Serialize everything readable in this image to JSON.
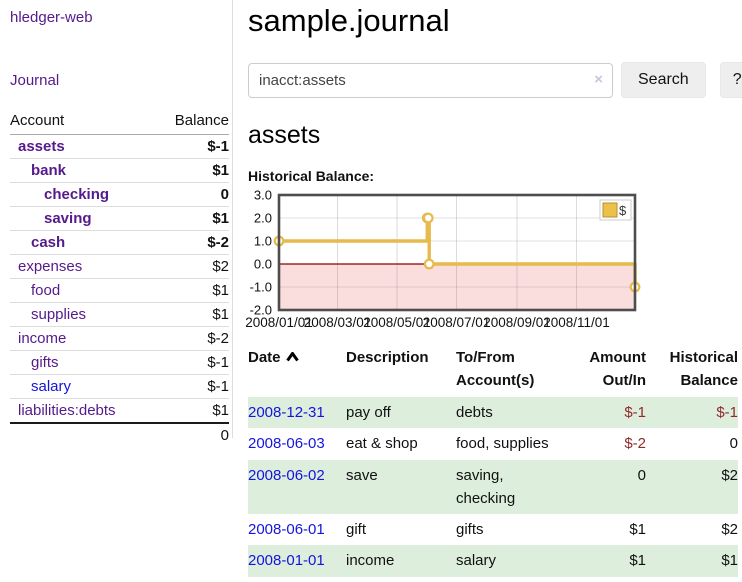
{
  "brand": "hledger-web",
  "sidebar": {
    "journal_link": "Journal",
    "accounts": {
      "header_account": "Account",
      "header_balance": "Balance",
      "rows": [
        {
          "name": "assets",
          "indent": 1,
          "bold": true,
          "balance": "$-1",
          "negative": true,
          "soft": false,
          "blue": false
        },
        {
          "name": "bank",
          "indent": 2,
          "bold": true,
          "balance": "$1",
          "negative": false,
          "soft": false,
          "blue": false
        },
        {
          "name": "checking",
          "indent": 3,
          "bold": true,
          "balance": "0",
          "negative": false,
          "soft": false,
          "blue": false
        },
        {
          "name": "saving",
          "indent": 3,
          "bold": true,
          "balance": "$1",
          "negative": false,
          "soft": false,
          "blue": false
        },
        {
          "name": "cash",
          "indent": 2,
          "bold": true,
          "balance": "$-2",
          "negative": true,
          "soft": false,
          "blue": false
        },
        {
          "name": "expenses",
          "indent": 1,
          "bold": false,
          "balance": "$2",
          "negative": false,
          "soft": false,
          "blue": false
        },
        {
          "name": "food",
          "indent": 2,
          "bold": false,
          "balance": "$1",
          "negative": false,
          "soft": false,
          "blue": false
        },
        {
          "name": "supplies",
          "indent": 2,
          "bold": false,
          "balance": "$1",
          "negative": false,
          "soft": false,
          "blue": false
        },
        {
          "name": "income",
          "indent": 1,
          "bold": false,
          "balance": "$-2",
          "negative": true,
          "soft": true,
          "blue": false
        },
        {
          "name": "gifts",
          "indent": 2,
          "bold": false,
          "balance": "$-1",
          "negative": true,
          "soft": true,
          "blue": false
        },
        {
          "name": "salary",
          "indent": 2,
          "bold": false,
          "balance": "$-1",
          "negative": true,
          "soft": true,
          "blue": true
        },
        {
          "name": "liabilities:debts",
          "indent": 1,
          "bold": false,
          "balance": "$1",
          "negative": false,
          "soft": false,
          "blue": false
        }
      ],
      "total": "0"
    }
  },
  "main": {
    "title": "sample.journal",
    "search": {
      "value": "inacct:assets",
      "clear_icon": "×",
      "search_button": "Search",
      "help_button": "?"
    },
    "account_heading": "assets",
    "section_label": "Historical Balance:"
  },
  "chart_data": {
    "type": "line",
    "title": "Historical Balance",
    "step": true,
    "x_type": "date",
    "x_range": [
      "2008/01/01",
      "2008/12/31"
    ],
    "xticks": [
      "2008/01/01",
      "2008/03/01",
      "2008/05/01",
      "2008/07/01",
      "2008/09/01",
      "2008/11/01"
    ],
    "yticks": [
      "3.0",
      "2.0",
      "1.0",
      "0.0",
      "-1.0",
      "-2.0"
    ],
    "ylim": [
      -2,
      3
    ],
    "grid": true,
    "legend": {
      "position": "top-right",
      "label": "$"
    },
    "series": [
      {
        "name": "$",
        "color": "#E6BA4C",
        "points": [
          {
            "x": "2008/01/01",
            "y": 1
          },
          {
            "x": "2008/06/01",
            "y": 2
          },
          {
            "x": "2008/06/02",
            "y": 2
          },
          {
            "x": "2008/06/03",
            "y": 0
          },
          {
            "x": "2008/12/31",
            "y": -1
          }
        ]
      }
    ],
    "zero_line_color": "#8B0000",
    "negative_area_fill": "#FADDDD"
  },
  "register": {
    "headers": {
      "date": "Date",
      "description": "Description",
      "accounts": "To/From Account(s)",
      "amount": "Amount Out/In",
      "balance": "Historical Balance"
    },
    "sort": {
      "column": "date",
      "direction": "ascending"
    },
    "rows": [
      {
        "date": "2008-12-31",
        "description": "pay off",
        "accounts": "debts",
        "amount": "$-1",
        "amount_negative": true,
        "balance": "$-1",
        "balance_negative": true
      },
      {
        "date": "2008-06-03",
        "description": "eat & shop",
        "accounts": "food, supplies",
        "amount": "$-2",
        "amount_negative": true,
        "balance": "0",
        "balance_negative": false
      },
      {
        "date": "2008-06-02",
        "description": "save",
        "accounts": "saving, checking",
        "amount": "0",
        "amount_negative": false,
        "balance": "$2",
        "balance_negative": false
      },
      {
        "date": "2008-06-01",
        "description": "gift",
        "accounts": "gifts",
        "amount": "$1",
        "amount_negative": false,
        "balance": "$2",
        "balance_negative": false
      },
      {
        "date": "2008-01-01",
        "description": "income",
        "accounts": "salary",
        "amount": "$1",
        "amount_negative": false,
        "balance": "$1",
        "balance_negative": false
      }
    ]
  },
  "colors": {
    "link_purple": "#551A8B",
    "link_blue": "#1414DD",
    "negative_red": "#8B1A1A",
    "negative_soft_red": "#A86060",
    "row_stripe_green": "#DDEEDD",
    "chart_line_gold": "#E6BA4C",
    "chart_negative_fill": "#FADDDD",
    "chart_zero_line": "#8B0000"
  }
}
